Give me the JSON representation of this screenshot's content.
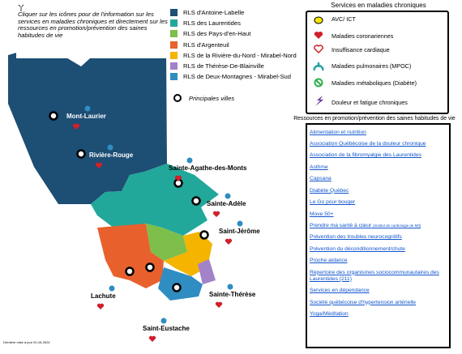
{
  "instruction": "Cliquer sur les icônes pour de l'information sur les services en maladies chroniques et directement sur les ressources en promotion/prévention des saines habitudes de vie",
  "legend": [
    {
      "name": "RLS d'Antoine-Labelle",
      "color": "#1d4e74"
    },
    {
      "name": "RLS des Laurentides",
      "color": "#22a89a"
    },
    {
      "name": "RLS des Pays-d'en-Haut",
      "color": "#7dbf4a"
    },
    {
      "name": "RLS d'Argenteuil",
      "color": "#e8612d"
    },
    {
      "name": "RLS de la Rivière-du-Nord - Mirabel-Nord",
      "color": "#f4b400"
    },
    {
      "name": "RLS de Thérèse-De-Blainville",
      "color": "#a283c9"
    },
    {
      "name": "RLS de Deux-Montagnes - Mirabel-Sud",
      "color": "#2f8dc2"
    }
  ],
  "main_cities_label": "Principales villes",
  "cities": [
    "Mont-Laurier",
    "Rivière-Rouge",
    "Sainte-Agathe-des-Monts",
    "Sainte-Adèle",
    "Saint-Jérôme",
    "Lachute",
    "Sainte-Thérèse",
    "Saint-Eustache"
  ],
  "services": {
    "title": "Services en maladies chroniques",
    "items": [
      "AVC/ ICT",
      "Maladies coronariennes",
      "Insuffisance cardiaque",
      "Maladies pulmonaires (MPOC)",
      "Maladies métaboliques (Diabète)",
      "Douleur et fatigue chroniques"
    ]
  },
  "resources": {
    "title": "Ressources en promotion/prévention des saines habitudes de vie",
    "links": [
      {
        "text": "Alimentation et nutrition"
      },
      {
        "text": "Association Québécoise de la douleur chronique"
      },
      {
        "text": "Association de la fibromyalgie des Laurentides"
      },
      {
        "text": "Asthme"
      },
      {
        "text": "Capsana"
      },
      {
        "text": "Diabète Québec"
      },
      {
        "text": "Le Go pour bouger"
      },
      {
        "text": "Move 50+"
      },
      {
        "text": "Prendre ma santé à cœur",
        "note": "(Institut de cardiologie de Mtl)"
      },
      {
        "text": "Prévention des troubles neurocognitifs"
      },
      {
        "text": "Prévention du déconditionnement/chute"
      },
      {
        "text": "Proche aidance"
      },
      {
        "text": "Répertoire des organismes sociocommunautaires des Laurentides (211)"
      },
      {
        "text": "Services en dépendance"
      },
      {
        "text": "Société québécoise d'hypertension artérielle"
      },
      {
        "text": "Yoga/Méditation"
      }
    ]
  },
  "footer": "Dernière mise à jour 02-16-2024"
}
